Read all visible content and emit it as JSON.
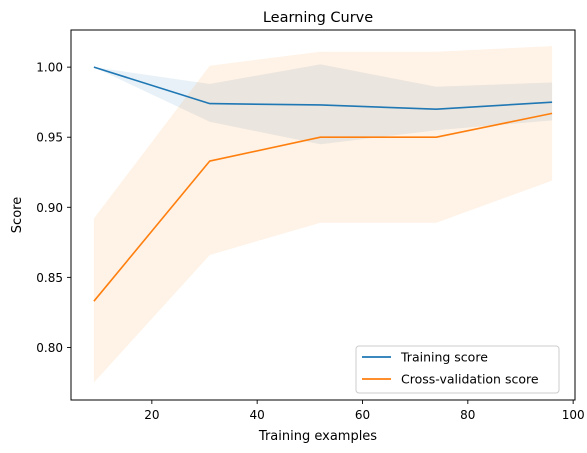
{
  "chart_data": {
    "type": "line",
    "title": "Learning Curve",
    "xlabel": "Training examples",
    "ylabel": "Score",
    "x": [
      9,
      31,
      52,
      74,
      96
    ],
    "xlim": [
      4.65,
      100.35
    ],
    "ylim": [
      0.7625,
      1.0265
    ],
    "xticks": [
      20,
      40,
      60,
      80,
      100
    ],
    "yticks": [
      0.8,
      0.85,
      0.9,
      0.95,
      1.0
    ],
    "ytick_labels": [
      "0.80",
      "0.85",
      "0.90",
      "0.95",
      "1.00"
    ],
    "grid": false,
    "legend_position": "lower right",
    "series": [
      {
        "name": "Training score",
        "color": "#1f77b4",
        "values": [
          1.0,
          0.974,
          0.973,
          0.97,
          0.975
        ],
        "band_lower": [
          1.0,
          0.961,
          0.945,
          0.955,
          0.962
        ],
        "band_upper": [
          1.0,
          0.988,
          1.002,
          0.986,
          0.989
        ]
      },
      {
        "name": "Cross-validation score",
        "color": "#ff7f0e",
        "values": [
          0.833,
          0.933,
          0.95,
          0.95,
          0.967
        ],
        "band_lower": [
          0.775,
          0.866,
          0.889,
          0.889,
          0.919
        ],
        "band_upper": [
          0.892,
          1.001,
          1.011,
          1.011,
          1.015
        ]
      }
    ]
  }
}
